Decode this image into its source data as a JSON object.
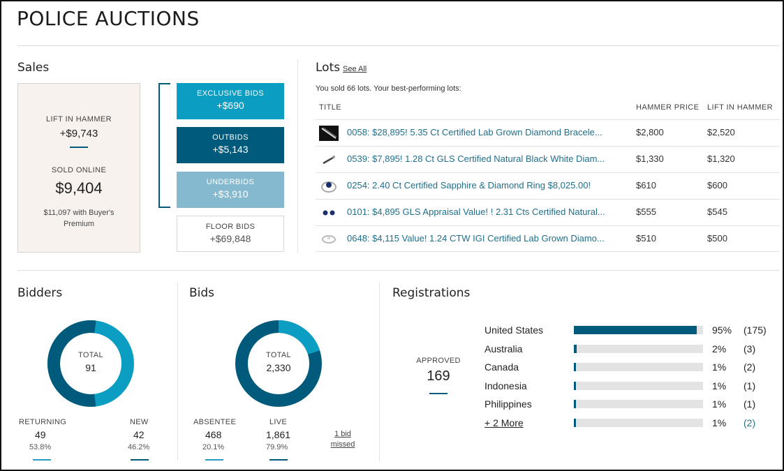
{
  "header": {
    "title": "POLICE AUCTIONS"
  },
  "sales": {
    "title": "Sales",
    "lift_label": "LIFT IN HAMMER",
    "lift_value": "+$9,743",
    "sold_label": "SOLD ONLINE",
    "sold_value": "$9,404",
    "premium_note": "$11,097 with Buyer's Premium",
    "bids": [
      {
        "label": "EXCLUSIVE BIDS",
        "value": "+$690",
        "color": "#0b9dc2"
      },
      {
        "label": "OUTBIDS",
        "value": "+$5,143",
        "color": "#005a7c"
      },
      {
        "label": "UNDERBIDS",
        "value": "+$3,910",
        "color": "#84b9cf"
      }
    ],
    "floor": {
      "label": "FLOOR BIDS",
      "value": "+$69,848"
    }
  },
  "lots": {
    "title": "Lots",
    "see_all": "See All",
    "summary": "You sold 66 lots. Your best-performing lots:",
    "columns": {
      "title": "TITLE",
      "hammer": "HAMMER PRICE",
      "lift": "LIFT IN HAMMER"
    },
    "rows": [
      {
        "title": "0058: $28,895! 5.35 Ct Certified Lab Grown Diamond Bracele...",
        "hammer": "$2,800",
        "lift": "$2,520",
        "thumb": "bracelet-icon"
      },
      {
        "title": "0539: $7,895! 1.28 Ct GLS Certified Natural Black White Diam...",
        "hammer": "$1,330",
        "lift": "$1,320",
        "thumb": "pendant-icon"
      },
      {
        "title": "0254: 2.40 Ct Certified Sapphire & Diamond Ring $8,025.00!",
        "hammer": "$610",
        "lift": "$600",
        "thumb": "ring-icon"
      },
      {
        "title": "0101: $4,895 GLS Appraisal Value! ! 2.31 Cts Certified Natural...",
        "hammer": "$555",
        "lift": "$545",
        "thumb": "earrings-icon"
      },
      {
        "title": "0648: $4,115 Value! 1.24 CTW IGI Certified Lab Grown Diamo...",
        "hammer": "$510",
        "lift": "$500",
        "thumb": "ring-icon"
      }
    ]
  },
  "bidders": {
    "title": "Bidders",
    "total_label": "TOTAL",
    "total": "91",
    "returning": {
      "label": "RETURNING",
      "value": "49",
      "pct": "53.8%",
      "fraction": 0.538
    },
    "new": {
      "label": "NEW",
      "value": "42",
      "pct": "46.2%",
      "fraction": 0.462
    }
  },
  "bids": {
    "title": "Bids",
    "total_label": "TOTAL",
    "total": "2,330",
    "absentee": {
      "label": "ABSENTEE",
      "value": "468",
      "pct": "20.1%",
      "fraction": 0.201
    },
    "live": {
      "label": "LIVE",
      "value": "1,861",
      "pct": "79.9%",
      "fraction": 0.799
    },
    "missed": "1 bid missed"
  },
  "registrations": {
    "title": "Registrations",
    "approved_label": "APPROVED",
    "approved": "169",
    "rows": [
      {
        "country": "United States",
        "pct": "95%",
        "count": "(175)",
        "fraction": 0.95
      },
      {
        "country": "Australia",
        "pct": "2%",
        "count": "(3)",
        "fraction": 0.02
      },
      {
        "country": "Canada",
        "pct": "1%",
        "count": "(2)",
        "fraction": 0.01
      },
      {
        "country": "Indonesia",
        "pct": "1%",
        "count": "(1)",
        "fraction": 0.01
      },
      {
        "country": "Philippines",
        "pct": "1%",
        "count": "(1)",
        "fraction": 0.01
      },
      {
        "country": "+ 2 More",
        "pct": "1%",
        "count": "(2)",
        "fraction": 0.01,
        "link": true
      }
    ]
  },
  "colors": {
    "dark": "#005a7c",
    "light": "#0b9dc2"
  }
}
